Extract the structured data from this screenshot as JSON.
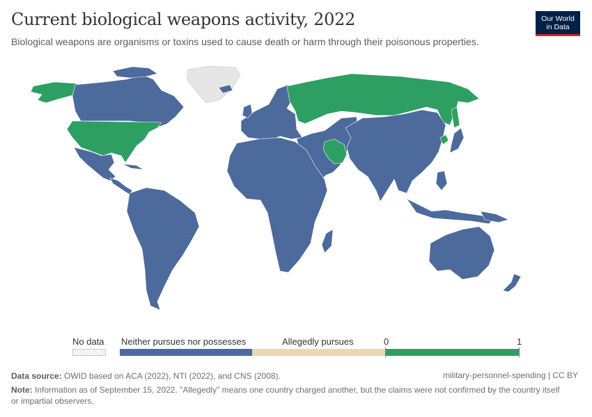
{
  "header": {
    "title": "Current biological weapons activity, 2022",
    "subtitle": "Biological weapons are organisms or toxins used to cause death or harm through their poisonous properties."
  },
  "logo": {
    "line1": "Our World",
    "line2": "in Data"
  },
  "colors": {
    "neither": "#4c6a9c",
    "alleged": "#e9d8b1",
    "possess": "#2e9f62",
    "no_data": "#dcdcdc",
    "logo_bg": "#002147",
    "logo_accent": "#ce261e"
  },
  "legend": {
    "no_data": "No data",
    "categories": [
      "Neither pursues nor possesses",
      "Allegedly pursues"
    ],
    "scale_min": "0",
    "scale_max": "1"
  },
  "map": {
    "icon": "world-choropleth-map",
    "categories_by_country": {
      "United States": "1",
      "Russia": "1",
      "Iran": "1",
      "North Korea": "1",
      "Greenland": "No data",
      "Canada": "Neither pursues nor possesses",
      "Mexico": "Neither pursues nor possesses",
      "Brazil": "Neither pursues nor possesses",
      "China": "Neither pursues nor possesses",
      "India": "Neither pursues nor possesses",
      "Australia": "Neither pursues nor possesses",
      "Africa (all countries)": "Neither pursues nor possesses",
      "Europe (excluding Russia)": "Neither pursues nor possesses"
    }
  },
  "footer": {
    "source_label": "Data source:",
    "source_text": " OWID based on ACA (2022), NTI (2022), and CNS (2008).",
    "license": "military-personnel-spending | CC BY",
    "note_label": "Note:",
    "note_text": " Information as of September 15, 2022. \"Allegedly\" means one country charged another, but the claims were not confirmed by the country itself or impartial observers."
  }
}
